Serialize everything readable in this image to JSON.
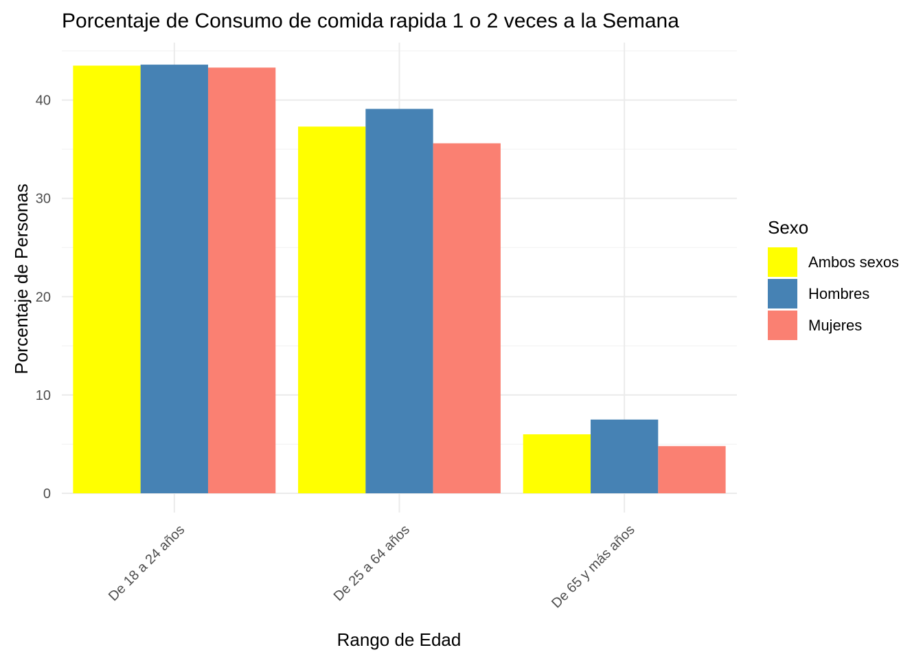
{
  "chart_data": {
    "type": "bar",
    "title": "Porcentaje de Consumo de comida rapida 1 o 2 veces a la Semana",
    "xlabel": "Rango de Edad",
    "ylabel": "Porcentaje de Personas",
    "categories": [
      "De 18 a 24 años",
      "De 25 a 64 años",
      "De 65 y más años"
    ],
    "series": [
      {
        "name": "Ambos sexos",
        "color": "#FFFF00",
        "values": [
          43.5,
          37.3,
          6.0
        ]
      },
      {
        "name": "Hombres",
        "color": "#4682B4",
        "values": [
          43.6,
          39.1,
          7.5
        ]
      },
      {
        "name": "Mujeres",
        "color": "#FA8072",
        "values": [
          43.3,
          35.6,
          4.8
        ]
      }
    ],
    "ylim": [
      0,
      45
    ],
    "yticks": [
      0,
      10,
      20,
      30,
      40
    ],
    "grid": true,
    "legend": {
      "title": "Sexo",
      "position": "right"
    }
  }
}
